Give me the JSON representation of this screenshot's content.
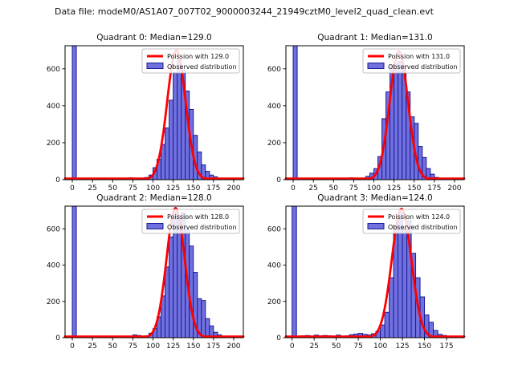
{
  "figure_title": "Data file: modeM0/AS1A07_007T02_9000003244_21949cztM0_level2_quad_clean.evt",
  "colors": {
    "background": "#ffffff",
    "bar_fill": "#7070de",
    "bar_edge": "#1b1b96",
    "curve": "#ff0000",
    "axis": "#000000",
    "tick_label": "#111111",
    "legend_border": "#b0b0b0",
    "legend_bg": "rgba(255,255,255,0.85)"
  },
  "chart_data": [
    {
      "type": "bar",
      "name": "quadrant-0",
      "title": "Quadrant 0: Median=129.0",
      "median": 129.0,
      "legend": [
        {
          "label": "Poission with 129.0",
          "swatch": "line",
          "color": "#ff0000"
        },
        {
          "label": "Observed distribution",
          "swatch": "patch",
          "color": "#7070de"
        }
      ],
      "x_ticks": [
        0,
        25,
        50,
        75,
        100,
        125,
        150,
        175,
        200
      ],
      "y_ticks": [
        0,
        200,
        400,
        600
      ],
      "xlim": [
        -9,
        212
      ],
      "ylim": [
        0,
        725
      ],
      "bin_width": 5,
      "bins": [
        [
          0,
          1500
        ],
        [
          65,
          8
        ],
        [
          70,
          10
        ],
        [
          85,
          6
        ],
        [
          90,
          12
        ],
        [
          95,
          25
        ],
        [
          100,
          65
        ],
        [
          105,
          110
        ],
        [
          110,
          190
        ],
        [
          115,
          280
        ],
        [
          120,
          430
        ],
        [
          125,
          580
        ],
        [
          130,
          650
        ],
        [
          135,
          590
        ],
        [
          140,
          480
        ],
        [
          145,
          380
        ],
        [
          150,
          240
        ],
        [
          155,
          150
        ],
        [
          160,
          80
        ],
        [
          165,
          45
        ],
        [
          170,
          25
        ],
        [
          175,
          15
        ],
        [
          180,
          8
        ],
        [
          190,
          5
        ]
      ],
      "curve": {
        "shape": "gaussian",
        "mu": 129,
        "sigma": 11.4,
        "peak": 700
      }
    },
    {
      "type": "bar",
      "name": "quadrant-1",
      "title": "Quadrant 1: Median=131.0",
      "median": 131.0,
      "legend": [
        {
          "label": "Poission with 131.0",
          "swatch": "line",
          "color": "#ff0000"
        },
        {
          "label": "Observed distribution",
          "swatch": "patch",
          "color": "#7070de"
        }
      ],
      "x_ticks": [
        0,
        25,
        50,
        75,
        100,
        125,
        150,
        175,
        200
      ],
      "y_ticks": [
        0,
        200,
        400,
        600
      ],
      "xlim": [
        -9,
        212
      ],
      "ylim": [
        0,
        725
      ],
      "bin_width": 5,
      "bins": [
        [
          0,
          1500
        ],
        [
          70,
          10
        ],
        [
          85,
          8
        ],
        [
          90,
          18
        ],
        [
          95,
          35
        ],
        [
          100,
          60
        ],
        [
          105,
          125
        ],
        [
          110,
          330
        ],
        [
          115,
          475
        ],
        [
          120,
          620
        ],
        [
          125,
          625
        ],
        [
          130,
          640
        ],
        [
          135,
          615
        ],
        [
          140,
          475
        ],
        [
          145,
          340
        ],
        [
          150,
          305
        ],
        [
          155,
          180
        ],
        [
          160,
          120
        ],
        [
          165,
          60
        ],
        [
          170,
          30
        ],
        [
          175,
          12
        ],
        [
          180,
          6
        ],
        [
          195,
          8
        ]
      ],
      "curve": {
        "shape": "gaussian",
        "mu": 131,
        "sigma": 11.4,
        "peak": 695
      }
    },
    {
      "type": "bar",
      "name": "quadrant-2",
      "title": "Quadrant 2: Median=128.0",
      "median": 128.0,
      "legend": [
        {
          "label": "Poission with 128.0",
          "swatch": "line",
          "color": "#ff0000"
        },
        {
          "label": "Observed distribution",
          "swatch": "patch",
          "color": "#7070de"
        }
      ],
      "x_ticks": [
        0,
        25,
        50,
        75,
        100,
        125,
        150,
        175,
        200
      ],
      "y_ticks": [
        0,
        200,
        400,
        600
      ],
      "xlim": [
        -9,
        212
      ],
      "ylim": [
        0,
        725
      ],
      "bin_width": 5,
      "bins": [
        [
          0,
          1500
        ],
        [
          75,
          15
        ],
        [
          80,
          12
        ],
        [
          90,
          10
        ],
        [
          95,
          25
        ],
        [
          100,
          50
        ],
        [
          105,
          115
        ],
        [
          110,
          230
        ],
        [
          115,
          390
        ],
        [
          120,
          555
        ],
        [
          125,
          700
        ],
        [
          130,
          657
        ],
        [
          135,
          688
        ],
        [
          140,
          600
        ],
        [
          145,
          505
        ],
        [
          150,
          360
        ],
        [
          155,
          215
        ],
        [
          160,
          205
        ],
        [
          165,
          105
        ],
        [
          170,
          65
        ],
        [
          175,
          30
        ],
        [
          180,
          15
        ],
        [
          185,
          8
        ]
      ],
      "curve": {
        "shape": "gaussian",
        "mu": 128,
        "sigma": 11.3,
        "peak": 715
      }
    },
    {
      "type": "bar",
      "name": "quadrant-3",
      "title": "Quadrant 3: Median=124.0",
      "median": 124.0,
      "legend": [
        {
          "label": "Poission with 124.0",
          "swatch": "line",
          "color": "#ff0000"
        },
        {
          "label": "Observed distribution",
          "swatch": "patch",
          "color": "#7070de"
        }
      ],
      "x_ticks": [
        0,
        25,
        50,
        75,
        100,
        125,
        150,
        175
      ],
      "y_ticks": [
        0,
        200,
        400,
        600
      ],
      "xlim": [
        -7,
        195
      ],
      "ylim": [
        0,
        725
      ],
      "bin_width": 5,
      "bins": [
        [
          0,
          1500
        ],
        [
          5,
          8
        ],
        [
          10,
          10
        ],
        [
          15,
          12
        ],
        [
          20,
          8
        ],
        [
          25,
          14
        ],
        [
          30,
          10
        ],
        [
          35,
          12
        ],
        [
          40,
          10
        ],
        [
          45,
          6
        ],
        [
          50,
          14
        ],
        [
          55,
          6
        ],
        [
          60,
          10
        ],
        [
          65,
          16
        ],
        [
          70,
          20
        ],
        [
          75,
          24
        ],
        [
          80,
          18
        ],
        [
          85,
          15
        ],
        [
          90,
          22
        ],
        [
          95,
          35
        ],
        [
          100,
          70
        ],
        [
          105,
          140
        ],
        [
          110,
          330
        ],
        [
          115,
          610
        ],
        [
          120,
          690
        ],
        [
          125,
          600
        ],
        [
          130,
          645
        ],
        [
          135,
          465
        ],
        [
          140,
          330
        ],
        [
          145,
          225
        ],
        [
          150,
          125
        ],
        [
          155,
          85
        ],
        [
          160,
          40
        ],
        [
          165,
          18
        ],
        [
          170,
          12
        ],
        [
          175,
          8
        ],
        [
          180,
          5
        ]
      ],
      "curve": {
        "shape": "gaussian",
        "mu": 124,
        "sigma": 11.1,
        "peak": 710
      }
    }
  ]
}
